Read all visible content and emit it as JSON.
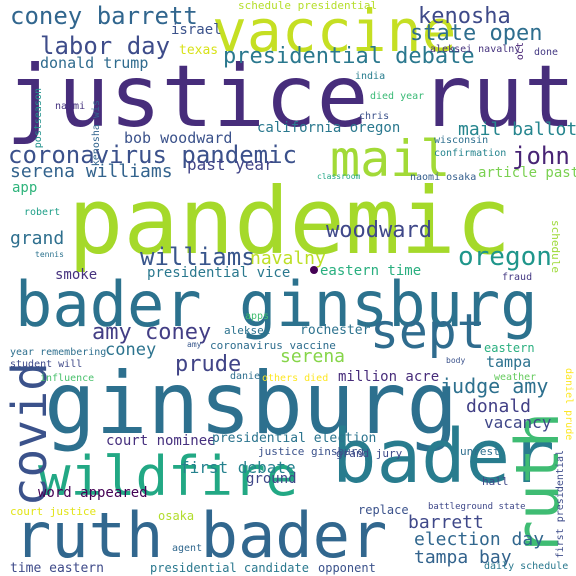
{
  "words": {
    "w01": {
      "text": "pandemic",
      "color": "#a5d92a"
    },
    "w02": {
      "text": "justice ruth",
      "color": "#472d7b"
    },
    "w03": {
      "text": "ginsburg",
      "color": "#2d708e"
    },
    "w04": {
      "text": "bader ginsburg",
      "color": "#2c728e"
    },
    "w05": {
      "text": "ruth bader",
      "color": "#31678e"
    },
    "w06": {
      "text": "vaccine",
      "color": "#c5df23"
    },
    "w07": {
      "text": "wildfire",
      "color": "#22a884"
    },
    "w08": {
      "text": "bader",
      "color": "#287c8e"
    },
    "w09": {
      "text": "ruth",
      "color": "#3fbc73"
    },
    "w10": {
      "text": "covid",
      "color": "#3b528b"
    },
    "w11": {
      "text": "mail",
      "color": "#a2da37"
    },
    "w12": {
      "text": "sept",
      "color": "#2f6c8e"
    },
    "w13": {
      "text": "coney barrett",
      "color": "#31668e"
    },
    "w14": {
      "text": "kenosha",
      "color": "#3e4a89"
    },
    "w15": {
      "text": "state open",
      "color": "#2e6e8e"
    },
    "w16": {
      "text": "labor day",
      "color": "#3e4c8a"
    },
    "w17": {
      "text": "presidential debate",
      "color": "#2a788e"
    },
    "w18": {
      "text": "donald trump",
      "color": "#2f6b8e"
    },
    "w19": {
      "text": "israel",
      "color": "#3b528b"
    },
    "w20": {
      "text": "texas",
      "color": "#d8e219"
    },
    "w21": {
      "text": "schedule presidential",
      "color": "#b5de2b"
    },
    "w22": {
      "text": "aleksei navalny",
      "color": "#46337e"
    },
    "w23": {
      "text": "kenosha wis",
      "color": "#32648e"
    },
    "w24": {
      "text": "oct",
      "color": "#482374"
    },
    "w25": {
      "text": "done",
      "color": "#443983"
    },
    "w26": {
      "text": "coronavirus pandemic",
      "color": "#3b518b"
    },
    "w27": {
      "text": "mail ballot",
      "color": "#25858e"
    },
    "w28": {
      "text": "john",
      "color": "#482475"
    },
    "w29": {
      "text": "serena williams",
      "color": "#33638d"
    },
    "w30": {
      "text": "past year",
      "color": "#414487"
    },
    "w31": {
      "text": "bob woodward",
      "color": "#3b528b"
    },
    "w32": {
      "text": "california oregon",
      "color": "#2a788e"
    },
    "w33": {
      "text": "app",
      "color": "#2fb47c"
    },
    "w34": {
      "text": "article past",
      "color": "#7ad151"
    },
    "w35": {
      "text": "india",
      "color": "#287d8e"
    },
    "w36": {
      "text": "died year",
      "color": "#3aba76"
    },
    "w37": {
      "text": "wisconsin",
      "color": "#2e6f8e"
    },
    "w38": {
      "text": "confirmation",
      "color": "#25848e"
    },
    "w39": {
      "text": "chris",
      "color": "#3b528b"
    },
    "w40": {
      "text": "naomi osaka",
      "color": "#355f8d"
    },
    "w41": {
      "text": "naomi",
      "color": "#46337f"
    },
    "w42": {
      "text": "classroom",
      "color": "#21a685"
    },
    "w43": {
      "text": "postseason",
      "color": "#21918c"
    },
    "w44": {
      "text": "grand",
      "color": "#2e6f8e"
    },
    "w45": {
      "text": "robert",
      "color": "#1f9f88"
    },
    "w46": {
      "text": "williams",
      "color": "#39568c"
    },
    "w47": {
      "text": "woodward",
      "color": "#3f4889"
    },
    "w48": {
      "text": "oregon",
      "color": "#1f968b"
    },
    "w49": {
      "text": "navalny",
      "color": "#bddf26"
    },
    "w50": {
      "text": "schedule",
      "color": "#9fda3a"
    },
    "w51": {
      "text": "tennis",
      "color": "#2c738e"
    },
    "w52": {
      "text": "smoke",
      "color": "#46327e"
    },
    "w53": {
      "text": "presidential vice",
      "color": "#2a788e"
    },
    "w54": {
      "text": "eastern time",
      "color": "#29af7f"
    },
    "w55": {
      "text": "fraud",
      "color": "#443983"
    },
    "w56": {
      "text": "amy coney",
      "color": "#433e85"
    },
    "w57": {
      "text": "prude",
      "color": "#414487"
    },
    "w58": {
      "text": "coney",
      "color": "#2c738e"
    },
    "w59": {
      "text": "serena",
      "color": "#86d549"
    },
    "w60": {
      "text": "apps",
      "color": "#42be71"
    },
    "w61": {
      "text": "aleksei",
      "color": "#2c728e"
    },
    "w62": {
      "text": "rochester",
      "color": "#2c728e"
    },
    "w63": {
      "text": "amy",
      "color": "#38588c"
    },
    "w64": {
      "text": "coronavirus vaccine",
      "color": "#2e6d8e"
    },
    "w65": {
      "text": "year remembering",
      "color": "#2e6f8e"
    },
    "w66": {
      "text": "student will",
      "color": "#3e4989"
    },
    "w67": {
      "text": "influence",
      "color": "#4ac16d"
    },
    "w68": {
      "text": "daniel",
      "color": "#2e6f8e"
    },
    "w69": {
      "text": "others died",
      "color": "#fde725"
    },
    "w70": {
      "text": "million acre",
      "color": "#472c7a"
    },
    "w71": {
      "text": "judge amy",
      "color": "#2d708e"
    },
    "w72": {
      "text": "tampa",
      "color": "#2c728e"
    },
    "w73": {
      "text": "eastern",
      "color": "#29af7f"
    },
    "w74": {
      "text": "body",
      "color": "#3b528b"
    },
    "w75": {
      "text": "weather",
      "color": "#65cb5e"
    },
    "w76": {
      "text": "daniel prude",
      "color": "#fde725"
    },
    "w77": {
      "text": "donald",
      "color": "#424086"
    },
    "w78": {
      "text": "vacancy",
      "color": "#3f4788"
    },
    "w79": {
      "text": "court nominee",
      "color": "#46307e"
    },
    "w80": {
      "text": "presidential election",
      "color": "#2b748e"
    },
    "w81": {
      "text": "first debate",
      "color": "#26828e"
    },
    "w82": {
      "text": "justice ginsburg",
      "color": "#3b528b"
    },
    "w83": {
      "text": "grand jury",
      "color": "#3e4a89"
    },
    "w84": {
      "text": "unrest",
      "color": "#2e6e8e"
    },
    "w85": {
      "text": "hall",
      "color": "#3f4889"
    },
    "w86": {
      "text": "word appeared",
      "color": "#440154"
    },
    "w87": {
      "text": "ground",
      "color": "#3f4788"
    },
    "w88": {
      "text": "osaka",
      "color": "#b2dd2d"
    },
    "w89": {
      "text": "barrett",
      "color": "#3f4889"
    },
    "w90": {
      "text": "election day",
      "color": "#31678e"
    },
    "w91": {
      "text": "tampa bay",
      "color": "#33638d"
    },
    "w92": {
      "text": "replace",
      "color": "#3b528b"
    },
    "w93": {
      "text": "battleground state",
      "color": "#3f4889"
    },
    "w94": {
      "text": "court justice",
      "color": "#e2e418"
    },
    "w95": {
      "text": "time eastern",
      "color": "#3e4a89"
    },
    "w96": {
      "text": "presidential candidate",
      "color": "#2a788e"
    },
    "w97": {
      "text": "opponent",
      "color": "#3b528b"
    },
    "w98": {
      "text": "agent",
      "color": "#31688e"
    },
    "w99": {
      "text": "daily schedule",
      "color": "#2a788e"
    },
    "w100": {
      "text": "first presidential",
      "color": "#3e4c8a"
    }
  }
}
